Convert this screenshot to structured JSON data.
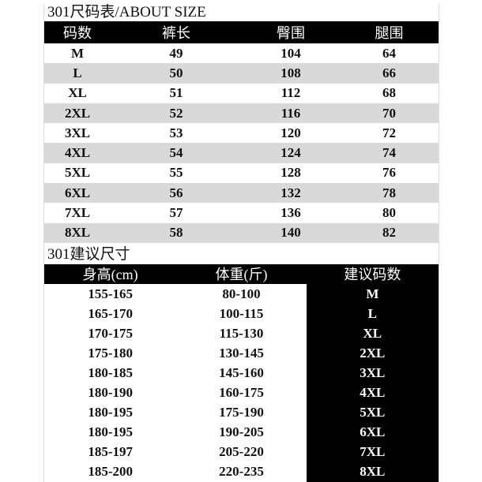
{
  "size_table": {
    "title": "301尺码表/ABOUT SIZE",
    "headers": [
      "码数",
      "裤长",
      "臀围",
      "腿围"
    ],
    "rows": [
      [
        "M",
        "49",
        "104",
        "64"
      ],
      [
        "L",
        "50",
        "108",
        "66"
      ],
      [
        "XL",
        "51",
        "112",
        "68"
      ],
      [
        "2XL",
        "52",
        "116",
        "70"
      ],
      [
        "3XL",
        "53",
        "120",
        "72"
      ],
      [
        "4XL",
        "54",
        "124",
        "74"
      ],
      [
        "5XL",
        "55",
        "128",
        "76"
      ],
      [
        "6XL",
        "56",
        "132",
        "78"
      ],
      [
        "7XL",
        "57",
        "136",
        "80"
      ],
      [
        "8XL",
        "58",
        "140",
        "82"
      ]
    ]
  },
  "recommend_table": {
    "title": "301建议尺寸",
    "headers": [
      "身高(cm)",
      "体重(斤)",
      "建议码数"
    ],
    "rows": [
      [
        "155-165",
        "80-100",
        "M"
      ],
      [
        "165-170",
        "100-115",
        "L"
      ],
      [
        "170-175",
        "115-130",
        "XL"
      ],
      [
        "175-180",
        "130-145",
        "2XL"
      ],
      [
        "180-185",
        "145-160",
        "3XL"
      ],
      [
        "180-190",
        "160-175",
        "4XL"
      ],
      [
        "180-195",
        "175-190",
        "5XL"
      ],
      [
        "180-195",
        "190-205",
        "6XL"
      ],
      [
        "185-197",
        "205-220",
        "7XL"
      ],
      [
        "185-200",
        "220-235",
        "8XL"
      ]
    ]
  },
  "colors": {
    "header_bg": "#000000",
    "stripe": "#d9d9d9"
  }
}
